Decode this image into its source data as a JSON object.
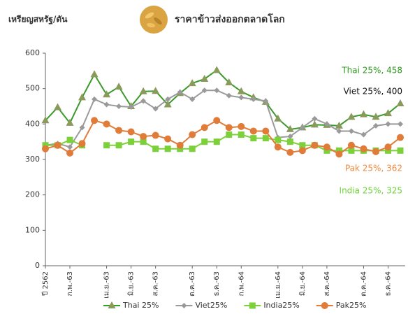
{
  "chart_data": {
    "type": "line",
    "title": "ราคาข้าวส่งออกตลาดโลก",
    "y_label": "เหรียญสหรัฐ/ตัน",
    "categories": [
      "ปี 2562",
      null,
      "ก.พ.-63",
      null,
      null,
      "เม.ย.-63",
      null,
      "มิ.ย.-63",
      null,
      "ส.ค.-63",
      null,
      null,
      "ต.ค.-63",
      null,
      "ธ.ค.-63",
      null,
      "ก.พ.-64",
      null,
      null,
      "เม.ย.-64",
      null,
      "มิ.ย.-64",
      null,
      "ส.ค.-64",
      null,
      null,
      "ต.ค.-64",
      null,
      "ธ.ค.-64",
      null
    ],
    "series": [
      {
        "name": "Thai 25%",
        "color": "#3a9a2a",
        "marker": "triangle",
        "marker_color": "#8a9a5b",
        "values": [
          410,
          447,
          403,
          475,
          540,
          483,
          505,
          450,
          492,
          493,
          455,
          487,
          515,
          527,
          552,
          517,
          492,
          475,
          462,
          415,
          385,
          390,
          398,
          397,
          395,
          420,
          427,
          420,
          430,
          458
        ]
      },
      {
        "name": "Viet25%",
        "color": "#9a9a9a",
        "marker": "diamond",
        "marker_color": "#9a9a9a",
        "values": [
          340,
          345,
          335,
          390,
          470,
          455,
          450,
          448,
          465,
          443,
          470,
          490,
          470,
          495,
          495,
          480,
          475,
          470,
          465,
          362,
          365,
          390,
          415,
          400,
          380,
          380,
          370,
          395,
          400,
          400
        ]
      },
      {
        "name": "India25%",
        "color": "#7cd13a",
        "marker": "square",
        "marker_color": "#7cd13a",
        "values": [
          340,
          340,
          355,
          340,
          null,
          340,
          340,
          350,
          350,
          330,
          330,
          330,
          330,
          350,
          350,
          370,
          370,
          360,
          360,
          355,
          350,
          340,
          340,
          325,
          325,
          325,
          325,
          325,
          325,
          325
        ]
      },
      {
        "name": "Pak25%",
        "color": "#e07b39",
        "marker": "circle",
        "marker_color": "#e07b39",
        "values": [
          330,
          340,
          318,
          345,
          410,
          400,
          382,
          378,
          365,
          368,
          358,
          340,
          370,
          390,
          410,
          390,
          393,
          380,
          380,
          335,
          320,
          325,
          340,
          335,
          315,
          340,
          330,
          322,
          335,
          362
        ]
      }
    ],
    "annotations": [
      {
        "text": "Thai 25%, 458",
        "color": "#2e9a1e"
      },
      {
        "text": "Viet 25%, 400",
        "color": "#111111"
      },
      {
        "text": "Pak 25%, 362",
        "color": "#f08a40"
      },
      {
        "text": "India 25%, 325",
        "color": "#6fd13a"
      }
    ],
    "ylim": [
      0,
      600
    ],
    "yticks": [
      0,
      100,
      200,
      300,
      400,
      500,
      600
    ],
    "grid": false,
    "legend": "bottom"
  }
}
